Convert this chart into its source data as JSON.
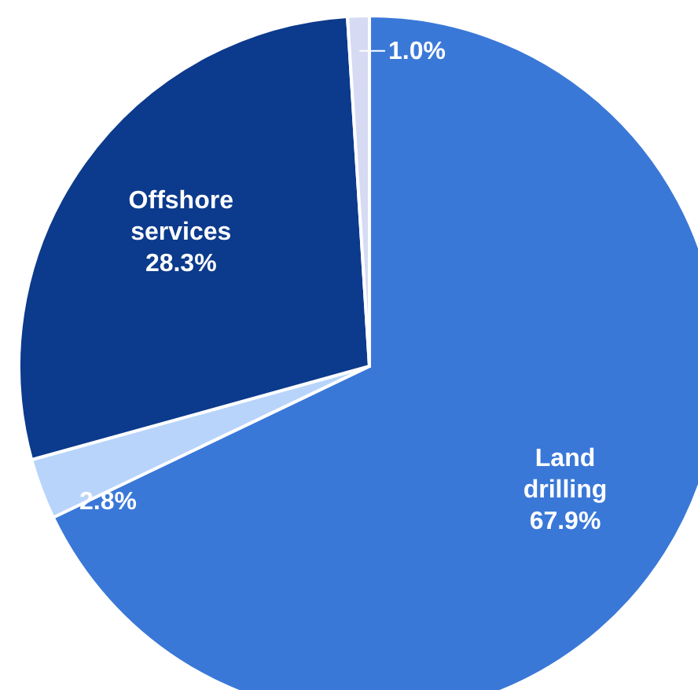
{
  "chart_data": {
    "type": "pie",
    "categories": [
      "Land drilling",
      null,
      "Offshore services",
      null
    ],
    "values": [
      67.9,
      2.8,
      28.3,
      1.0
    ],
    "colors": [
      "#3a78d8",
      "#b8d4fb",
      "#0c3a8c",
      "#d6dbf3"
    ],
    "value_labels": [
      "67.9%",
      "2.8%",
      "28.3%",
      "1.0%"
    ]
  }
}
